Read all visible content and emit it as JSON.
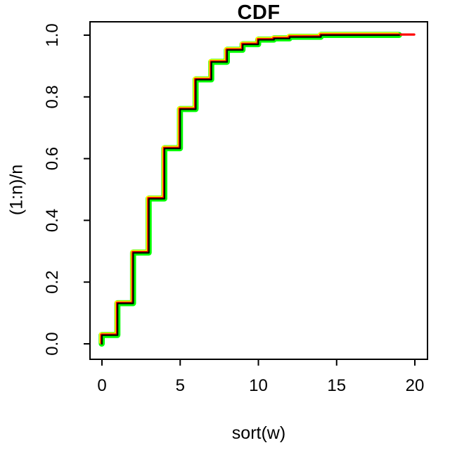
{
  "title": "CDF",
  "chart_data": {
    "type": "line",
    "subtype": "step-ecdf",
    "title": "CDF",
    "xlabel": "sort(w)",
    "ylabel": "(1:n)/n",
    "xlim": [
      0,
      20
    ],
    "ylim": [
      0.0,
      1.0
    ],
    "grid": false,
    "legend": null,
    "x_ticks": {
      "values": [
        0,
        5,
        10,
        15,
        20
      ],
      "labels": [
        "0",
        "5",
        "10",
        "15",
        "20"
      ]
    },
    "y_ticks": {
      "values": [
        0.0,
        0.2,
        0.4,
        0.6,
        0.8,
        1.0
      ],
      "labels": [
        "0.0",
        "0.2",
        "0.4",
        "0.6",
        "0.8",
        "1.0"
      ]
    },
    "step_points": [
      [
        0,
        0.028
      ],
      [
        1,
        0.131
      ],
      [
        2,
        0.295
      ],
      [
        3,
        0.47
      ],
      [
        4,
        0.633
      ],
      [
        5,
        0.76
      ],
      [
        6,
        0.856
      ],
      [
        7,
        0.913
      ],
      [
        8,
        0.952
      ],
      [
        9,
        0.97
      ],
      [
        10,
        0.985
      ],
      [
        11,
        0.989
      ],
      [
        12,
        0.994
      ],
      [
        14,
        1.0
      ]
    ],
    "series": [
      {
        "name": "green",
        "color": "#00FF00",
        "width": 8.6,
        "dx": -0.3,
        "dy": -0.3,
        "end_x": 19
      },
      {
        "name": "yellow",
        "color": "#FFFF00",
        "width": 4.0,
        "dx": -2.0,
        "dy": -2.0,
        "end_x": 19
      },
      {
        "name": "red",
        "color": "#FF0000",
        "width": 3.2,
        "dx": -0.9,
        "dy": -0.9,
        "end_x": 20
      },
      {
        "name": "black",
        "color": "#000000",
        "width": 2.2,
        "dx": 0,
        "dy": 0,
        "end_x": 19
      }
    ],
    "axis_color": "#000000"
  }
}
